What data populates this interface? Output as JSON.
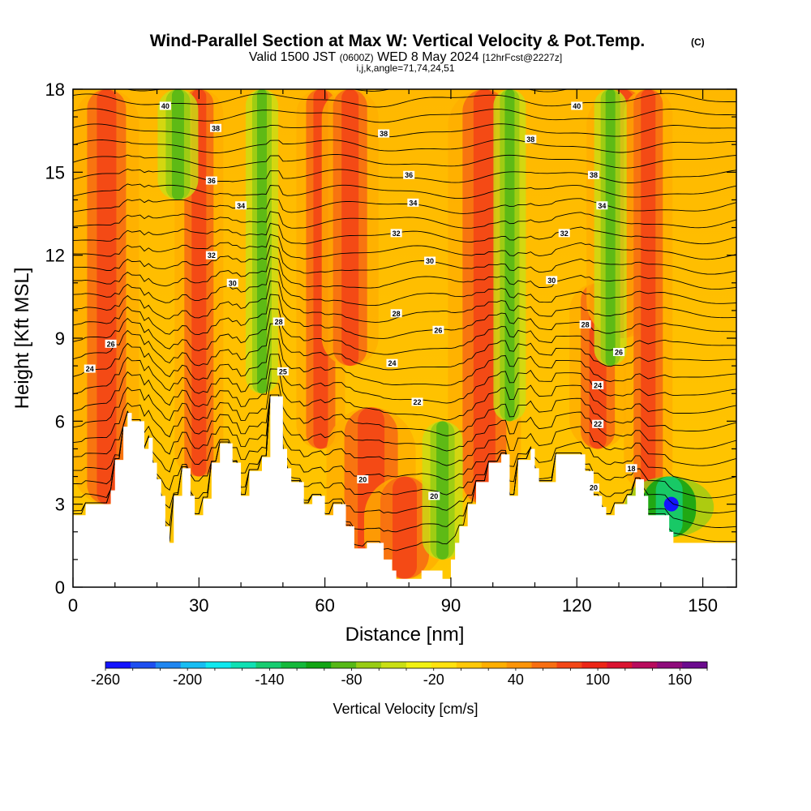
{
  "title": {
    "main": "Wind-Parallel Section at Max W: Vertical Velocity & Pot.Temp.",
    "main_mark": "(C)",
    "valid_a": "Valid 1500 JST",
    "valid_b": "(0600Z)",
    "valid_c": "WED 8 May 2024",
    "valid_d": "[12hrFcst@2227z]",
    "line3": "i,j,k,angle=71,74,24,51"
  },
  "chart_data": {
    "type": "heatmap",
    "title": "Wind-Parallel Section at Max W: Vertical Velocity & Pot.Temp.",
    "xlabel": "Distance [nm]",
    "ylabel": "Height [Kft MSL]",
    "xlim": [
      0,
      158
    ],
    "ylim": [
      0,
      18
    ],
    "x_ticks": [
      "0",
      "30",
      "60",
      "90",
      "120",
      "150"
    ],
    "y_ticks": [
      "0",
      "3",
      "6",
      "9",
      "12",
      "15",
      "18"
    ],
    "x_tick_values": [
      0,
      30,
      60,
      90,
      120,
      150
    ],
    "y_tick_values": [
      0,
      3,
      6,
      9,
      12,
      15,
      18
    ],
    "terrain_kft": [
      [
        0,
        2.6
      ],
      [
        3,
        2.6
      ],
      [
        3,
        3.0
      ],
      [
        9,
        3.0
      ],
      [
        9,
        3.5
      ],
      [
        10,
        3.5
      ],
      [
        10,
        4.6
      ],
      [
        12,
        4.6
      ],
      [
        12,
        5.8
      ],
      [
        13,
        5.8
      ],
      [
        13,
        6.3
      ],
      [
        14,
        6.3
      ],
      [
        14,
        6.0
      ],
      [
        17,
        6.0
      ],
      [
        17,
        5.0
      ],
      [
        18,
        5.0
      ],
      [
        18,
        5.4
      ],
      [
        19,
        5.4
      ],
      [
        19,
        4.5
      ],
      [
        20,
        4.5
      ],
      [
        20,
        3.9
      ],
      [
        21,
        3.9
      ],
      [
        21,
        3.3
      ],
      [
        22,
        3.3
      ],
      [
        22,
        2.2
      ],
      [
        23,
        2.2
      ],
      [
        23,
        1.6
      ],
      [
        24,
        1.6
      ],
      [
        24,
        3.3
      ],
      [
        26,
        3.3
      ],
      [
        26,
        4.3
      ],
      [
        28,
        4.3
      ],
      [
        28,
        3.3
      ],
      [
        29,
        3.3
      ],
      [
        29,
        2.6
      ],
      [
        31,
        2.6
      ],
      [
        31,
        3.2
      ],
      [
        33,
        3.2
      ],
      [
        33,
        4.5
      ],
      [
        35,
        4.5
      ],
      [
        35,
        5.2
      ],
      [
        38,
        5.2
      ],
      [
        38,
        4.5
      ],
      [
        40,
        4.5
      ],
      [
        40,
        3.3
      ],
      [
        42,
        3.3
      ],
      [
        42,
        4.2
      ],
      [
        45,
        4.2
      ],
      [
        45,
        4.7
      ],
      [
        47,
        4.7
      ],
      [
        47,
        6.9
      ],
      [
        50,
        6.9
      ],
      [
        50,
        5.0
      ],
      [
        51,
        5.0
      ],
      [
        51,
        4.3
      ],
      [
        52,
        4.3
      ],
      [
        52,
        3.8
      ],
      [
        55,
        3.8
      ],
      [
        55,
        3.0
      ],
      [
        57,
        3.0
      ],
      [
        57,
        3.3
      ],
      [
        60,
        3.3
      ],
      [
        60,
        2.6
      ],
      [
        62,
        2.6
      ],
      [
        62,
        3.0
      ],
      [
        65,
        3.0
      ],
      [
        65,
        2.2
      ],
      [
        67,
        2.2
      ],
      [
        67,
        1.4
      ],
      [
        70,
        1.4
      ],
      [
        70,
        1.6
      ],
      [
        74,
        1.6
      ],
      [
        74,
        1.0
      ],
      [
        76,
        1.0
      ],
      [
        76,
        0.6
      ],
      [
        77,
        0.6
      ],
      [
        77,
        0.3
      ],
      [
        83,
        0.3
      ],
      [
        83,
        0.6
      ],
      [
        88,
        0.6
      ],
      [
        88,
        0.3
      ],
      [
        90,
        0.3
      ],
      [
        90,
        1.0
      ],
      [
        91,
        1.0
      ],
      [
        91,
        1.6
      ],
      [
        92,
        1.6
      ],
      [
        92,
        2.2
      ],
      [
        94,
        2.2
      ],
      [
        94,
        3.0
      ],
      [
        96,
        3.0
      ],
      [
        96,
        3.8
      ],
      [
        99,
        3.8
      ],
      [
        99,
        4.5
      ],
      [
        102,
        4.5
      ],
      [
        102,
        4.8
      ],
      [
        104,
        4.8
      ],
      [
        104,
        3.3
      ],
      [
        106,
        3.3
      ],
      [
        106,
        4.6
      ],
      [
        109,
        4.6
      ],
      [
        109,
        5.0
      ],
      [
        110,
        5.0
      ],
      [
        110,
        4.3
      ],
      [
        111,
        4.3
      ],
      [
        111,
        3.8
      ],
      [
        115,
        3.8
      ],
      [
        115,
        4.8
      ],
      [
        122,
        4.8
      ],
      [
        122,
        4.2
      ],
      [
        124,
        4.2
      ],
      [
        124,
        3.3
      ],
      [
        126,
        3.3
      ],
      [
        126,
        2.9
      ],
      [
        127,
        2.9
      ],
      [
        127,
        2.6
      ],
      [
        129,
        2.6
      ],
      [
        129,
        3.0
      ],
      [
        132,
        3.0
      ],
      [
        132,
        3.3
      ],
      [
        134,
        3.3
      ],
      [
        134,
        3.9
      ],
      [
        136,
        3.9
      ],
      [
        136,
        3.3
      ],
      [
        137,
        3.3
      ],
      [
        137,
        2.6
      ],
      [
        142,
        2.6
      ],
      [
        142,
        2.0
      ],
      [
        143,
        2.0
      ],
      [
        143,
        1.6
      ],
      [
        158,
        1.6
      ]
    ],
    "updraft_columns": [
      {
        "x": 8,
        "w": 80,
        "z0": 3,
        "z1": 18
      },
      {
        "x": 30,
        "w": 60,
        "z0": 4,
        "z1": 18
      },
      {
        "x": 59,
        "w": 60,
        "z0": 5,
        "z1": 18
      },
      {
        "x": 66,
        "w": 70,
        "z0": 8,
        "z1": 18
      },
      {
        "x": 71,
        "w": 110,
        "z0": 1,
        "z1": 6.5
      },
      {
        "x": 79,
        "w": 100,
        "z0": 0.3,
        "z1": 4
      },
      {
        "x": 98,
        "w": 90,
        "z0": 3,
        "z1": 18
      },
      {
        "x": 125,
        "w": 70,
        "z0": 5,
        "z1": 11
      },
      {
        "x": 131,
        "w": 90,
        "z0": 9,
        "z1": 18
      },
      {
        "x": 137,
        "w": 60,
        "z0": 3.5,
        "z1": 18
      }
    ],
    "downdraft_columns": [
      {
        "x": 25,
        "w": 50,
        "z0": 14,
        "z1": 18
      },
      {
        "x": 45,
        "w": 40,
        "z0": 7,
        "z1": 18
      },
      {
        "x": 88,
        "w": 50,
        "z0": 1,
        "z1": 6
      },
      {
        "x": 104,
        "w": 40,
        "z0": 6,
        "z1": 18
      },
      {
        "x": 128,
        "w": 40,
        "z0": 8,
        "z1": 18
      },
      {
        "x": 142,
        "w": 110,
        "z0": 1.8,
        "z1": 4
      }
    ],
    "min_vertical_velocity": -260,
    "theta_contour_labels": [
      {
        "x": 22,
        "z": 17.4,
        "v": "40"
      },
      {
        "x": 34,
        "z": 16.6,
        "v": "38"
      },
      {
        "x": 33,
        "z": 14.7,
        "v": "36"
      },
      {
        "x": 40,
        "z": 13.8,
        "v": "34"
      },
      {
        "x": 33,
        "z": 12.0,
        "v": "32"
      },
      {
        "x": 38,
        "z": 11.0,
        "v": "30"
      },
      {
        "x": 49,
        "z": 9.6,
        "v": "28"
      },
      {
        "x": 9,
        "z": 8.8,
        "v": "26"
      },
      {
        "x": 4,
        "z": 7.9,
        "v": "24"
      },
      {
        "x": 50,
        "z": 7.8,
        "v": "25"
      },
      {
        "x": 74,
        "z": 16.4,
        "v": "38"
      },
      {
        "x": 109,
        "z": 16.2,
        "v": "38"
      },
      {
        "x": 80,
        "z": 14.9,
        "v": "36"
      },
      {
        "x": 81,
        "z": 13.9,
        "v": "34"
      },
      {
        "x": 77,
        "z": 12.8,
        "v": "32"
      },
      {
        "x": 85,
        "z": 11.8,
        "v": "30"
      },
      {
        "x": 77,
        "z": 9.9,
        "v": "28"
      },
      {
        "x": 87,
        "z": 9.3,
        "v": "26"
      },
      {
        "x": 76,
        "z": 8.1,
        "v": "24"
      },
      {
        "x": 82,
        "z": 6.7,
        "v": "22"
      },
      {
        "x": 69,
        "z": 3.9,
        "v": "20"
      },
      {
        "x": 86,
        "z": 3.3,
        "v": "20"
      },
      {
        "x": 120,
        "z": 17.4,
        "v": "40"
      },
      {
        "x": 124,
        "z": 14.9,
        "v": "38"
      },
      {
        "x": 126,
        "z": 13.8,
        "v": "34"
      },
      {
        "x": 117,
        "z": 12.8,
        "v": "32"
      },
      {
        "x": 114,
        "z": 11.1,
        "v": "30"
      },
      {
        "x": 122,
        "z": 9.5,
        "v": "28"
      },
      {
        "x": 130,
        "z": 8.5,
        "v": "26"
      },
      {
        "x": 125,
        "z": 7.3,
        "v": "24"
      },
      {
        "x": 125,
        "z": 5.9,
        "v": "22"
      },
      {
        "x": 133,
        "z": 4.3,
        "v": "18"
      },
      {
        "x": 124,
        "z": 3.6,
        "v": "20"
      }
    ],
    "colorbar": {
      "label": "Vertical Velocity [cm/s]",
      "ticks": [
        "-260",
        "-200",
        "-140",
        "-80",
        "-20",
        "40",
        "100",
        "160"
      ],
      "tick_values": [
        -260,
        -200,
        -140,
        -80,
        -20,
        40,
        100,
        160
      ],
      "min": -260,
      "max": 180,
      "step": 20,
      "colors": [
        "#1414ff",
        "#1e4ff0",
        "#1f86f0",
        "#16bdf2",
        "#10e8ee",
        "#10e0b3",
        "#17cc70",
        "#14b83a",
        "#12a414",
        "#56b816",
        "#98cc14",
        "#c9df14",
        "#f1f112",
        "#ffe20e",
        "#ffc807",
        "#ffae00",
        "#fd9408",
        "#f76e12",
        "#f34616",
        "#ec2616",
        "#da1431",
        "#b80c5d",
        "#8f0c7b",
        "#6b0b8e"
      ]
    }
  }
}
